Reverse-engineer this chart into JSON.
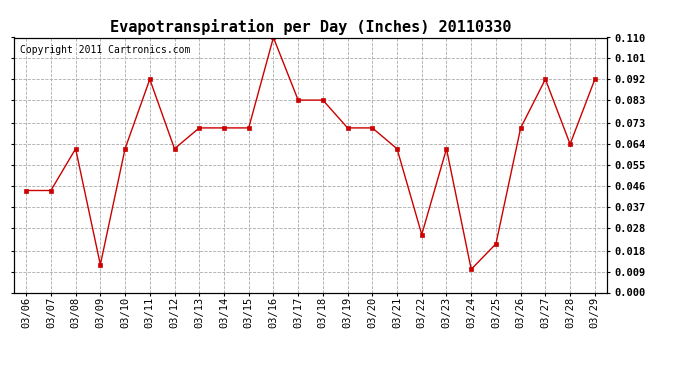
{
  "title": "Evapotranspiration per Day (Inches) 20110330",
  "copyright": "Copyright 2011 Cartronics.com",
  "dates": [
    "03/06",
    "03/07",
    "03/08",
    "03/09",
    "03/10",
    "03/11",
    "03/12",
    "03/13",
    "03/14",
    "03/15",
    "03/16",
    "03/17",
    "03/18",
    "03/19",
    "03/20",
    "03/21",
    "03/22",
    "03/23",
    "03/24",
    "03/25",
    "03/26",
    "03/27",
    "03/28",
    "03/29"
  ],
  "values": [
    0.044,
    0.044,
    0.062,
    0.012,
    0.062,
    0.092,
    0.062,
    0.071,
    0.071,
    0.071,
    0.11,
    0.083,
    0.083,
    0.071,
    0.071,
    0.062,
    0.025,
    0.062,
    0.01,
    0.021,
    0.071,
    0.092,
    0.064,
    0.092
  ],
  "line_color": "#cc0000",
  "marker": "s",
  "marker_size": 3,
  "bg_color": "#ffffff",
  "grid_color": "#aaaaaa",
  "ylim": [
    0.0,
    0.11
  ],
  "yticks": [
    0.0,
    0.009,
    0.018,
    0.028,
    0.037,
    0.046,
    0.055,
    0.064,
    0.073,
    0.083,
    0.092,
    0.101,
    0.11
  ],
  "title_fontsize": 11,
  "copyright_fontsize": 7,
  "tick_fontsize": 7.5
}
